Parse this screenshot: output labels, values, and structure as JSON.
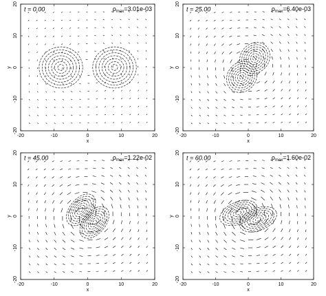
{
  "chart_data": [
    {
      "type": "contour",
      "title": "t = 0.00",
      "annotation": [
        "ρ",
        "max",
        "=3.01e-03"
      ],
      "xlabel": "x",
      "ylabel": "y",
      "xlim": [
        -20,
        20
      ],
      "ylim": [
        -20,
        20
      ],
      "xticks": [
        -20,
        -10,
        0,
        10,
        20
      ],
      "yticks": [
        -20,
        -10,
        0,
        10,
        20
      ]
    },
    {
      "type": "contour",
      "title": "t = 25.00",
      "annotation": [
        "ρ",
        "max",
        "=6.40e-03"
      ],
      "xlabel": "x",
      "ylabel": "y",
      "xlim": [
        -20,
        20
      ],
      "ylim": [
        -20,
        20
      ],
      "xticks": [
        -20,
        -10,
        0,
        10,
        20
      ],
      "yticks": [
        -20,
        -10,
        0,
        10,
        20
      ]
    },
    {
      "type": "contour",
      "title": "t = 45.00",
      "annotation": [
        "ρ",
        "max",
        "=1.22e-02"
      ],
      "xlabel": "x",
      "ylabel": "y",
      "xlim": [
        -20,
        20
      ],
      "ylim": [
        -20,
        20
      ],
      "xticks": [
        -20,
        -10,
        0,
        10,
        20
      ],
      "yticks": [
        -20,
        -10,
        0,
        10,
        20
      ]
    },
    {
      "type": "contour",
      "title": "t = 60.00",
      "annotation": [
        "ρ",
        "max",
        "=1.60e-02"
      ],
      "xlabel": "x",
      "ylabel": "y",
      "xlim": [
        -20,
        20
      ],
      "ylim": [
        -20,
        20
      ],
      "xticks": [
        -20,
        -10,
        0,
        10,
        20
      ],
      "yticks": [
        -20,
        -10,
        0,
        10,
        20
      ]
    }
  ]
}
